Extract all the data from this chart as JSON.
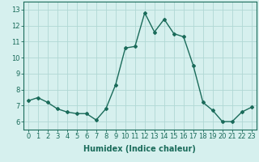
{
  "x": [
    0,
    1,
    2,
    3,
    4,
    5,
    6,
    7,
    8,
    9,
    10,
    11,
    12,
    13,
    14,
    15,
    16,
    17,
    18,
    19,
    20,
    21,
    22,
    23
  ],
  "y": [
    7.3,
    7.5,
    7.2,
    6.8,
    6.6,
    6.5,
    6.5,
    6.1,
    6.8,
    8.3,
    10.6,
    10.7,
    12.8,
    11.6,
    12.4,
    11.5,
    11.3,
    9.5,
    7.2,
    6.7,
    6.0,
    6.0,
    6.6,
    6.9
  ],
  "line_color": "#1a6b5a",
  "marker": "D",
  "marker_size": 2,
  "bg_color": "#d6f0ee",
  "grid_color": "#b0d8d4",
  "xlabel": "Humidex (Indice chaleur)",
  "xlim": [
    -0.5,
    23.5
  ],
  "ylim": [
    5.5,
    13.5
  ],
  "yticks": [
    6,
    7,
    8,
    9,
    10,
    11,
    12,
    13
  ],
  "xticks": [
    0,
    1,
    2,
    3,
    4,
    5,
    6,
    7,
    8,
    9,
    10,
    11,
    12,
    13,
    14,
    15,
    16,
    17,
    18,
    19,
    20,
    21,
    22,
    23
  ],
  "xlabel_fontsize": 7,
  "tick_fontsize": 6,
  "line_width": 1.0
}
